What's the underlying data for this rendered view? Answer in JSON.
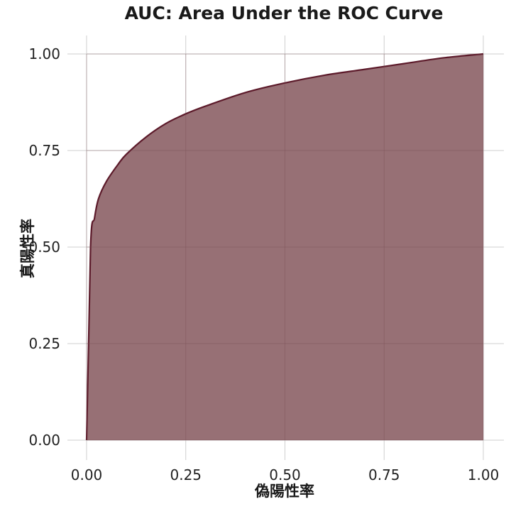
{
  "chart_data": {
    "type": "area",
    "title": "AUC: Area Under the ROC Curve",
    "xlabel": "偽陽性率",
    "ylabel": "真陽性率",
    "xlim": [
      0,
      1
    ],
    "ylim": [
      0,
      1
    ],
    "x_ticks": [
      "0.00",
      "0.25",
      "0.50",
      "0.75",
      "1.00"
    ],
    "y_ticks": [
      "0.00",
      "0.25",
      "0.50",
      "0.75",
      "1.00"
    ],
    "grid": true,
    "series": [
      {
        "color": "#5c1a2a",
        "fill_color": "#8e6469",
        "x": [
          0,
          0.01,
          0.02,
          0.03,
          0.05,
          0.08,
          0.1,
          0.15,
          0.2,
          0.25,
          0.3,
          0.4,
          0.5,
          0.6,
          0.7,
          0.8,
          0.9,
          1.0
        ],
        "y": [
          0,
          0.5,
          0.575,
          0.625,
          0.67,
          0.715,
          0.74,
          0.785,
          0.82,
          0.845,
          0.865,
          0.9,
          0.925,
          0.945,
          0.96,
          0.975,
          0.99,
          1.0
        ]
      }
    ]
  }
}
